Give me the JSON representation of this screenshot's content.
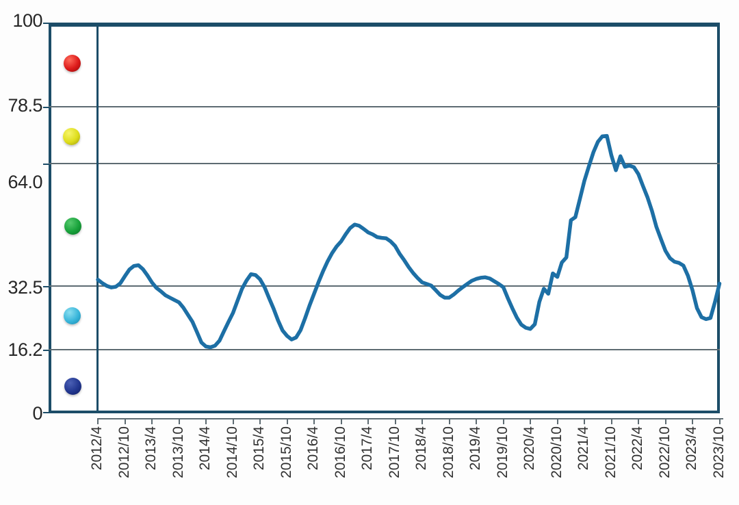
{
  "chart_data": {
    "type": "line",
    "title": "",
    "y_axis": {
      "ticks": [
        "100",
        "78.5",
        "64.0",
        "32.5",
        "16.2",
        "0"
      ],
      "tick_values": [
        100,
        78.5,
        64.0,
        32.5,
        16.2,
        0
      ],
      "ylim": [
        0,
        100
      ],
      "gridline_values": [
        78.5,
        64.0,
        32.5,
        16.2
      ],
      "grid": "on"
    },
    "x_axis": {
      "tick_labels": [
        "2012/4",
        "2012/10",
        "2013/4",
        "2013/10",
        "2014/4",
        "2014/10",
        "2015/4",
        "2015/10",
        "2016/4",
        "2016/10",
        "2017/4",
        "2017/10",
        "2018/4",
        "2018/10",
        "2019/4",
        "2019/10",
        "2020/4",
        "2020/10",
        "2021/4",
        "2021/10",
        "2022/4",
        "2022/10",
        "2023/4",
        "2023/10"
      ],
      "label_rotation_deg": -90,
      "tick_interval_months": 6
    },
    "series": [
      {
        "color": "#1d6fa5",
        "frequency": "monthly",
        "x_monthly_from": "2012/4",
        "x_monthly_to": "2023/10",
        "values": [
          34.2,
          33.3,
          32.6,
          32.2,
          32.4,
          33.3,
          35.1,
          36.8,
          37.7,
          37.9,
          36.9,
          35.3,
          33.5,
          32.1,
          31.2,
          30.2,
          29.6,
          29.0,
          28.4,
          27.0,
          25.2,
          23.4,
          20.8,
          18.1,
          17.1,
          16.9,
          17.3,
          18.6,
          21.0,
          23.4,
          25.7,
          28.8,
          31.9,
          34.0,
          35.6,
          35.4,
          34.3,
          32.3,
          29.5,
          26.8,
          23.8,
          21.2,
          19.8,
          18.9,
          19.4,
          21.3,
          24.3,
          27.6,
          30.6,
          33.6,
          36.4,
          38.9,
          41.0,
          42.7,
          44.0,
          45.8,
          47.4,
          48.3,
          48.0,
          47.2,
          46.3,
          45.8,
          45.1,
          44.9,
          44.8,
          44.0,
          42.8,
          40.8,
          39.2,
          37.4,
          35.9,
          34.6,
          33.5,
          33.1,
          32.7,
          31.5,
          30.3,
          29.6,
          29.6,
          30.4,
          31.4,
          32.3,
          33.1,
          33.9,
          34.4,
          34.7,
          34.8,
          34.5,
          33.8,
          33.1,
          32.3,
          29.5,
          26.9,
          24.5,
          22.7,
          21.9,
          21.6,
          22.8,
          28.5,
          31.9,
          30.6,
          35.8,
          34.9,
          38.6,
          39.9,
          49.4,
          50.2,
          54.8,
          59.5,
          63.2,
          66.8,
          69.5,
          70.9,
          71.0,
          66.0,
          62.2,
          65.8,
          63.1,
          63.4,
          63.0,
          61.2,
          58.2,
          55.3,
          51.8,
          47.7,
          44.6,
          41.6,
          39.7,
          38.8,
          38.5,
          37.8,
          35.2,
          31.5,
          26.9,
          24.6,
          24.1,
          24.4,
          28.5,
          33.2
        ]
      }
    ],
    "legend_dots": [
      {
        "id": "red",
        "color": "#dc1a1a",
        "highlight": "#ff6a5a",
        "shadow": "#8f0b0b"
      },
      {
        "id": "yellow",
        "color": "#dedd1c",
        "highlight": "#f6f56a",
        "shadow": "#9a9a08"
      },
      {
        "id": "green",
        "color": "#17a13a",
        "highlight": "#55c96d",
        "shadow": "#0b6e24"
      },
      {
        "id": "cyan",
        "color": "#38b5da",
        "highlight": "#8adef0",
        "shadow": "#1686ab"
      },
      {
        "id": "dark-blue",
        "color": "#21368f",
        "highlight": "#4b60b5",
        "shadow": "#101c5e"
      }
    ],
    "layout_colors": {
      "border": "#1c4d68",
      "gridline": "#5d6b72",
      "line": "#1d6fa5"
    }
  }
}
